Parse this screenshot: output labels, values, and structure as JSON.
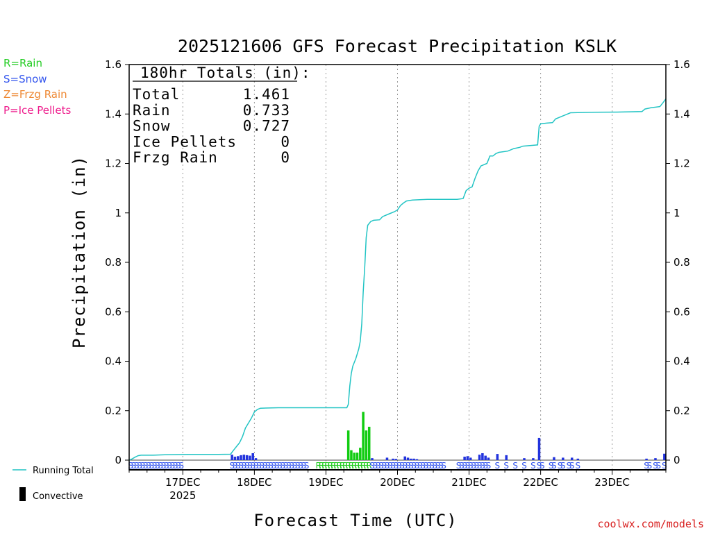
{
  "chart_data": {
    "type": "bar",
    "title": "2025121606 GFS Forecast Precipitation KSLK",
    "xlabel": "Forecast Time (UTC)",
    "ylabel": "Precipitation (in)",
    "ylim": [
      0,
      1.6
    ],
    "xlim_hours": [
      0,
      180
    ],
    "yticks": [
      "0",
      "0.2",
      "0.4",
      "0.6",
      "0.8",
      "1",
      "1.2",
      "1.4",
      "1.6"
    ],
    "xticks": [
      {
        "label": "17DEC",
        "sub": "2025",
        "hour": 18
      },
      {
        "label": "18DEC",
        "hour": 42
      },
      {
        "label": "19DEC",
        "hour": 66
      },
      {
        "label": "20DEC",
        "hour": 90
      },
      {
        "label": "21DEC",
        "hour": 114
      },
      {
        "label": "22DEC",
        "hour": 138
      },
      {
        "label": "23DEC",
        "hour": 162
      }
    ],
    "totals": {
      "header": "180hr Totals (in):",
      "rows": [
        {
          "label": "Total",
          "value": "1.461"
        },
        {
          "label": "Rain",
          "value": "0.733"
        },
        {
          "label": "Snow",
          "value": "0.727"
        },
        {
          "label": "Ice Pellets",
          "value": "0"
        },
        {
          "label": "Frzg Rain",
          "value": "0"
        }
      ]
    },
    "legend_types": [
      {
        "label": "R=Rain",
        "color": "#22cc22"
      },
      {
        "label": "S=Snow",
        "color": "#3355ee"
      },
      {
        "label": "Z=Frzg Rain",
        "color": "#ee8833"
      },
      {
        "label": "P=Ice Pellets",
        "color": "#ee1c8c"
      }
    ],
    "legend_bottom": {
      "running": "Running Total",
      "convective": "Convective"
    },
    "series": [
      {
        "name": "Running Total",
        "color": "#22c4c4",
        "points": [
          [
            0,
            0
          ],
          [
            1,
            0.005
          ],
          [
            2,
            0.012
          ],
          [
            3,
            0.018
          ],
          [
            4,
            0.02
          ],
          [
            8,
            0.02
          ],
          [
            12,
            0.022
          ],
          [
            20,
            0.023
          ],
          [
            30,
            0.023
          ],
          [
            34,
            0.024
          ],
          [
            35,
            0.04
          ],
          [
            36,
            0.055
          ],
          [
            37,
            0.07
          ],
          [
            38,
            0.095
          ],
          [
            39,
            0.13
          ],
          [
            40,
            0.15
          ],
          [
            41,
            0.17
          ],
          [
            42,
            0.195
          ],
          [
            43,
            0.205
          ],
          [
            44,
            0.21
          ],
          [
            50,
            0.212
          ],
          [
            60,
            0.212
          ],
          [
            73,
            0.212
          ],
          [
            73.5,
            0.225
          ],
          [
            74,
            0.3
          ],
          [
            74.5,
            0.35
          ],
          [
            75,
            0.38
          ],
          [
            76,
            0.41
          ],
          [
            77,
            0.45
          ],
          [
            77.5,
            0.48
          ],
          [
            78,
            0.55
          ],
          [
            78.5,
            0.68
          ],
          [
            79,
            0.78
          ],
          [
            79.5,
            0.9
          ],
          [
            80,
            0.95
          ],
          [
            81,
            0.965
          ],
          [
            82,
            0.97
          ],
          [
            84,
            0.972
          ],
          [
            85,
            0.985
          ],
          [
            87,
            0.995
          ],
          [
            89,
            1.005
          ],
          [
            90,
            1.012
          ],
          [
            91,
            1.03
          ],
          [
            92,
            1.04
          ],
          [
            93,
            1.048
          ],
          [
            95,
            1.052
          ],
          [
            100,
            1.055
          ],
          [
            110,
            1.055
          ],
          [
            112,
            1.058
          ],
          [
            113,
            1.09
          ],
          [
            114,
            1.1
          ],
          [
            115,
            1.105
          ],
          [
            116,
            1.14
          ],
          [
            117,
            1.17
          ],
          [
            118,
            1.19
          ],
          [
            120,
            1.2
          ],
          [
            121,
            1.23
          ],
          [
            122,
            1.23
          ],
          [
            123,
            1.24
          ],
          [
            124,
            1.245
          ],
          [
            127,
            1.25
          ],
          [
            129,
            1.26
          ],
          [
            131,
            1.265
          ],
          [
            132,
            1.27
          ],
          [
            137,
            1.275
          ],
          [
            137.5,
            1.35
          ],
          [
            138,
            1.36
          ],
          [
            140,
            1.363
          ],
          [
            142,
            1.365
          ],
          [
            143,
            1.38
          ],
          [
            145,
            1.39
          ],
          [
            147,
            1.4
          ],
          [
            148,
            1.405
          ],
          [
            155,
            1.407
          ],
          [
            165,
            1.408
          ],
          [
            172,
            1.41
          ],
          [
            173,
            1.42
          ],
          [
            175,
            1.425
          ],
          [
            178,
            1.43
          ],
          [
            179,
            1.445
          ],
          [
            180,
            1.461
          ]
        ]
      },
      {
        "name": "Snow",
        "color": "#2233dd",
        "bars": [
          [
            34.5,
            0.022
          ],
          [
            35.5,
            0.014
          ],
          [
            36.5,
            0.016
          ],
          [
            37.5,
            0.02
          ],
          [
            38.5,
            0.022
          ],
          [
            39.5,
            0.02
          ],
          [
            40.5,
            0.018
          ],
          [
            41.5,
            0.028
          ],
          [
            42.5,
            0.008
          ],
          [
            80.5,
            0.01
          ],
          [
            81.5,
            0.008
          ],
          [
            86.5,
            0.01
          ],
          [
            88.5,
            0.006
          ],
          [
            89.5,
            0.005
          ],
          [
            92.5,
            0.015
          ],
          [
            93.5,
            0.01
          ],
          [
            94.5,
            0.006
          ],
          [
            95.5,
            0.006
          ],
          [
            96.5,
            0.004
          ],
          [
            112.5,
            0.014
          ],
          [
            113.5,
            0.016
          ],
          [
            114.5,
            0.01
          ],
          [
            117.5,
            0.022
          ],
          [
            118.5,
            0.028
          ],
          [
            119.5,
            0.018
          ],
          [
            120.5,
            0.01
          ],
          [
            123.5,
            0.025
          ],
          [
            126.5,
            0.02
          ],
          [
            132.5,
            0.008
          ],
          [
            135.5,
            0.008
          ],
          [
            137.5,
            0.09
          ],
          [
            142.5,
            0.012
          ],
          [
            145.5,
            0.01
          ],
          [
            148.5,
            0.01
          ],
          [
            150.5,
            0.006
          ],
          [
            173.5,
            0.006
          ],
          [
            176.5,
            0.008
          ],
          [
            179.5,
            0.026
          ]
        ]
      },
      {
        "name": "Rain",
        "color": "#11cc11",
        "bars": [
          [
            73.5,
            0.12
          ],
          [
            74.5,
            0.04
          ],
          [
            75.5,
            0.03
          ],
          [
            76.5,
            0.03
          ],
          [
            77.5,
            0.05
          ],
          [
            78.5,
            0.195
          ],
          [
            79.5,
            0.12
          ],
          [
            80.5,
            0.135
          ]
        ]
      }
    ],
    "ptype_labels": {
      "rain": "R",
      "snow": "S"
    },
    "credit": "coolwx.com/models"
  }
}
